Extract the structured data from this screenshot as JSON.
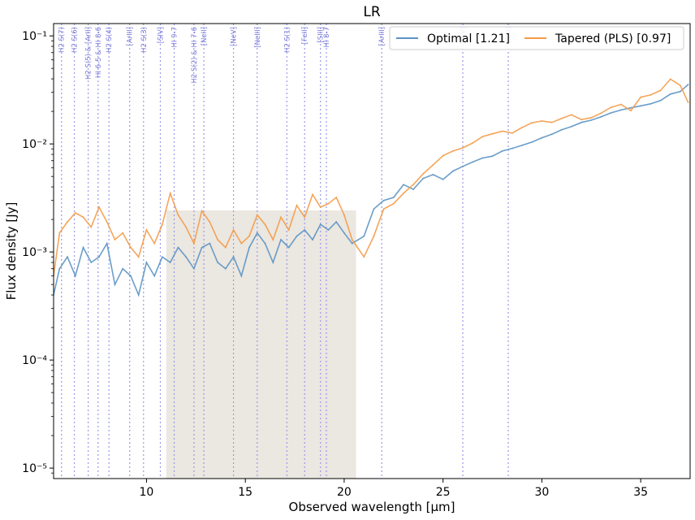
{
  "chart_data": {
    "type": "line",
    "title": "LR",
    "xlabel": "Observed wavelength [μm]",
    "ylabel": "Flux density [Jy]",
    "xlim": [
      5.3,
      37.5
    ],
    "ylim": [
      8e-06,
      0.13
    ],
    "yscale": "log",
    "x_ticks": [
      10,
      15,
      20,
      25,
      30,
      35
    ],
    "x_tick_labels": [
      "10",
      "15",
      "20",
      "25",
      "30",
      "35"
    ],
    "y_ticks": [
      1e-05,
      0.0001,
      0.001,
      0.01,
      0.1
    ],
    "y_tick_labels": [
      "10⁻⁵",
      "10⁻⁴",
      "10⁻³",
      "10⁻²",
      "10⁻¹"
    ],
    "grid": false,
    "legend_position": "top-right",
    "series": [
      {
        "name": "Optimal [1.21]",
        "color": "#5b93c3",
        "x": [
          5.3,
          5.6,
          6.0,
          6.4,
          6.8,
          7.2,
          7.6,
          8.0,
          8.4,
          8.8,
          9.2,
          9.6,
          10.0,
          10.4,
          10.8,
          11.2,
          11.6,
          12.0,
          12.4,
          12.8,
          13.2,
          13.6,
          14.0,
          14.4,
          14.8,
          15.2,
          15.6,
          16.0,
          16.4,
          16.8,
          17.2,
          17.6,
          18.0,
          18.4,
          18.8,
          19.2,
          19.6,
          20.0,
          20.4,
          21.0,
          21.5,
          22.0,
          22.5,
          23.0,
          23.5,
          24.0,
          24.5,
          25.0,
          25.5,
          26.0,
          26.5,
          27.0,
          27.5,
          28.0,
          28.5,
          29.0,
          29.5,
          30.0,
          30.5,
          31.0,
          31.5,
          32.0,
          32.5,
          33.0,
          33.5,
          34.0,
          34.5,
          35.0,
          35.5,
          36.0,
          36.5,
          37.0,
          37.4
        ],
        "y": [
          0.0004,
          0.0007,
          0.0009,
          0.0006,
          0.0011,
          0.0008,
          0.0009,
          0.0012,
          0.0005,
          0.0007,
          0.0006,
          0.0004,
          0.0008,
          0.0006,
          0.0009,
          0.0008,
          0.0011,
          0.0009,
          0.0007,
          0.0011,
          0.0012,
          0.0008,
          0.0007,
          0.0009,
          0.0006,
          0.0011,
          0.0015,
          0.0012,
          0.0008,
          0.0013,
          0.0011,
          0.0014,
          0.0016,
          0.0013,
          0.0018,
          0.0016,
          0.0019,
          0.0015,
          0.0012,
          0.0014,
          0.0025,
          0.003,
          0.0032,
          0.0042,
          0.0038,
          0.0048,
          0.0052,
          0.0047,
          0.0056,
          0.0062,
          0.0068,
          0.0074,
          0.0077,
          0.0086,
          0.0091,
          0.0097,
          0.0104,
          0.0114,
          0.0123,
          0.0135,
          0.0145,
          0.0158,
          0.0166,
          0.0178,
          0.0194,
          0.0206,
          0.0216,
          0.0225,
          0.0235,
          0.0252,
          0.0289,
          0.0305,
          0.0355
        ]
      },
      {
        "name": "Tapered (PLS) [0.97]",
        "color": "#f49b48",
        "x": [
          5.3,
          5.6,
          6.0,
          6.4,
          6.8,
          7.2,
          7.6,
          8.0,
          8.4,
          8.8,
          9.2,
          9.6,
          10.0,
          10.4,
          10.8,
          11.2,
          11.6,
          12.0,
          12.4,
          12.8,
          13.2,
          13.6,
          14.0,
          14.4,
          14.8,
          15.2,
          15.6,
          16.0,
          16.4,
          16.8,
          17.2,
          17.6,
          18.0,
          18.4,
          18.8,
          19.2,
          19.6,
          20.0,
          20.4,
          21.0,
          21.5,
          22.0,
          22.5,
          23.0,
          23.5,
          24.0,
          24.5,
          25.0,
          25.5,
          26.0,
          26.5,
          27.0,
          27.5,
          28.0,
          28.5,
          29.0,
          29.5,
          30.0,
          30.5,
          31.0,
          31.5,
          32.0,
          32.5,
          33.0,
          33.5,
          34.0,
          34.5,
          35.0,
          35.5,
          36.0,
          36.5,
          37.0,
          37.4
        ],
        "y": [
          0.0006,
          0.0015,
          0.0019,
          0.0023,
          0.0021,
          0.0017,
          0.0026,
          0.0019,
          0.0013,
          0.0015,
          0.0011,
          0.0009,
          0.0016,
          0.0012,
          0.0018,
          0.0035,
          0.0022,
          0.0017,
          0.0012,
          0.0024,
          0.0019,
          0.0013,
          0.0011,
          0.0016,
          0.0012,
          0.0014,
          0.0022,
          0.0018,
          0.0013,
          0.0021,
          0.0016,
          0.0027,
          0.0021,
          0.0034,
          0.0026,
          0.0028,
          0.0032,
          0.0022,
          0.0013,
          0.0009,
          0.0014,
          0.0025,
          0.0028,
          0.0035,
          0.0042,
          0.0053,
          0.0064,
          0.0078,
          0.0086,
          0.0092,
          0.0102,
          0.0117,
          0.0124,
          0.0131,
          0.0126,
          0.0142,
          0.0157,
          0.0163,
          0.0158,
          0.0172,
          0.0186,
          0.0168,
          0.0175,
          0.0193,
          0.0218,
          0.0232,
          0.0203,
          0.0271,
          0.0284,
          0.0312,
          0.0398,
          0.0349,
          0.0242
        ]
      }
    ],
    "emission_lines": [
      {
        "label": "H2 S(7)",
        "x": 5.7
      },
      {
        "label": "H2 S(6)",
        "x": 6.35
      },
      {
        "label": "H2 S(5) & [ArII]",
        "x": 7.05
      },
      {
        "label": "HI 6-5 & HI 8-6",
        "x": 7.55
      },
      {
        "label": "H2 S(4)",
        "x": 8.1
      },
      {
        "label": "[ArIII]",
        "x": 9.15
      },
      {
        "label": "H2 S(3)",
        "x": 9.85
      },
      {
        "label": "[SIV]",
        "x": 10.7
      },
      {
        "label": "HI 9-7",
        "x": 11.4
      },
      {
        "label": "H2 S(2) & HI 7-6",
        "x": 12.4
      },
      {
        "label": "[NeII]",
        "x": 12.9
      },
      {
        "label": "[NeV]",
        "x": 14.4
      },
      {
        "label": "[NeIII]",
        "x": 15.6
      },
      {
        "label": "H2 S(1)",
        "x": 17.1
      },
      {
        "label": "[FeII]",
        "x": 18.0
      },
      {
        "label": "[SIII]",
        "x": 18.8
      },
      {
        "label": "HI 8-7",
        "x": 19.1
      },
      {
        "label": "[ArIII]",
        "x": 21.9
      },
      {
        "label": "[OIV]",
        "x": 26.0
      },
      {
        "label": "[SIII]",
        "x": 28.3
      }
    ]
  }
}
